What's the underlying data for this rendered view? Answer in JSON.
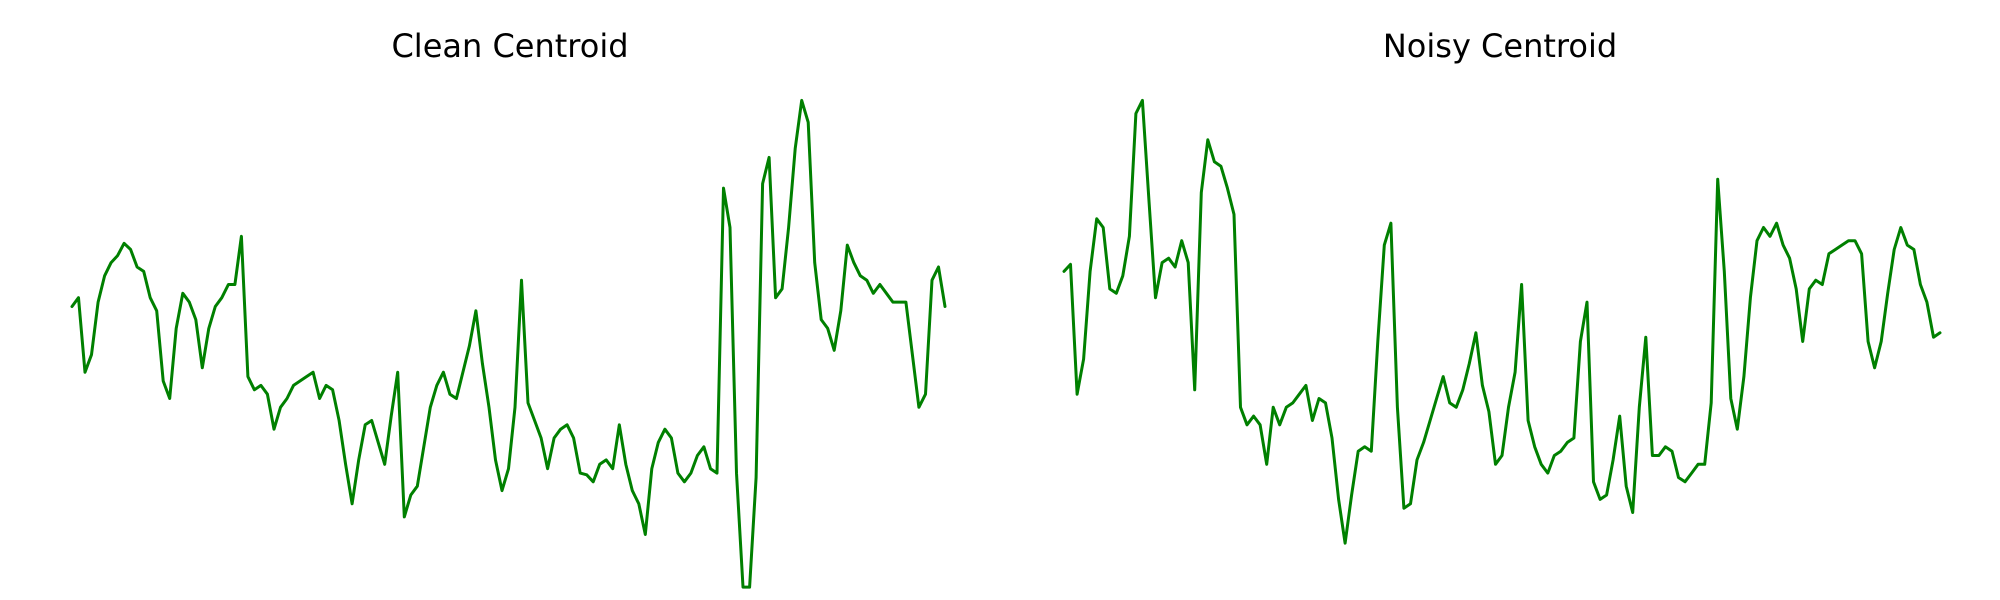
{
  "chart_data": [
    {
      "type": "line",
      "title": "Clean Centroid",
      "axis_visible": false,
      "grid": false,
      "color": "#008000",
      "x_range": [
        0,
        127
      ],
      "y_range": [
        -2.6,
        2.6
      ],
      "y": [
        0.2,
        0.3,
        -0.55,
        -0.35,
        0.25,
        0.55,
        0.7,
        0.78,
        0.92,
        0.85,
        0.65,
        0.6,
        0.3,
        0.15,
        -0.65,
        -0.85,
        -0.05,
        0.35,
        0.25,
        0.05,
        -0.5,
        -0.05,
        0.2,
        0.3,
        0.45,
        0.45,
        1.0,
        -0.6,
        -0.75,
        -0.7,
        -0.8,
        -1.2,
        -0.95,
        -0.85,
        -0.7,
        -0.65,
        -0.6,
        -0.55,
        -0.85,
        -0.7,
        -0.75,
        -1.1,
        -1.6,
        -2.05,
        -1.55,
        -1.15,
        -1.1,
        -1.35,
        -1.6,
        -1.05,
        -0.55,
        -2.2,
        -1.95,
        -1.85,
        -1.4,
        -0.95,
        -0.7,
        -0.55,
        -0.8,
        -0.85,
        -0.55,
        -0.25,
        0.15,
        -0.45,
        -0.95,
        -1.55,
        -1.9,
        -1.65,
        -0.95,
        0.5,
        -0.9,
        -1.1,
        -1.3,
        -1.65,
        -1.3,
        -1.2,
        -1.15,
        -1.3,
        -1.7,
        -1.72,
        -1.8,
        -1.6,
        -1.55,
        -1.65,
        -1.15,
        -1.6,
        -1.9,
        -2.05,
        -2.4,
        -1.65,
        -1.35,
        -1.2,
        -1.3,
        -1.7,
        -1.8,
        -1.7,
        -1.5,
        -1.4,
        -1.65,
        -1.7,
        1.55,
        1.1,
        -1.7,
        -3.0,
        -3.0,
        -1.75,
        1.6,
        1.9,
        0.3,
        0.4,
        1.1,
        2.0,
        2.55,
        2.3,
        0.7,
        0.05,
        -0.05,
        -0.3,
        0.15,
        0.9,
        0.7,
        0.55,
        0.5,
        0.35,
        0.45,
        0.35,
        0.25,
        0.25,
        0.25,
        -0.35,
        -0.95,
        -0.8,
        0.5,
        0.65,
        0.2
      ]
    },
    {
      "type": "line",
      "title": "Noisy Centroid",
      "axis_visible": false,
      "grid": false,
      "color": "#008000",
      "x_range": [
        0,
        127
      ],
      "y_range": [
        -2.6,
        2.6
      ],
      "y": [
        0.6,
        0.68,
        -0.8,
        -0.4,
        0.6,
        1.2,
        1.1,
        0.4,
        0.35,
        0.55,
        1.0,
        2.4,
        2.55,
        1.4,
        0.3,
        0.7,
        0.75,
        0.65,
        0.95,
        0.7,
        -0.75,
        1.5,
        2.1,
        1.85,
        1.8,
        1.55,
        1.25,
        -0.95,
        -1.15,
        -1.05,
        -1.15,
        -1.6,
        -0.95,
        -1.15,
        -0.95,
        -0.9,
        -0.8,
        -0.7,
        -1.1,
        -0.85,
        -0.9,
        -1.3,
        -2.0,
        -2.5,
        -1.95,
        -1.45,
        -1.4,
        -1.45,
        -0.2,
        0.9,
        1.15,
        -0.95,
        -2.1,
        -2.05,
        -1.55,
        -1.35,
        -1.1,
        -0.85,
        -0.6,
        -0.9,
        -0.95,
        -0.75,
        -0.45,
        -0.1,
        -0.7,
        -1.0,
        -1.6,
        -1.5,
        -0.95,
        -0.55,
        0.45,
        -1.1,
        -1.4,
        -1.6,
        -1.7,
        -1.5,
        -1.45,
        -1.35,
        -1.3,
        -0.2,
        0.25,
        -1.8,
        -2.0,
        -1.95,
        -1.55,
        -1.05,
        -1.85,
        -2.15,
        -0.95,
        -0.15,
        -1.5,
        -1.5,
        -1.4,
        -1.45,
        -1.75,
        -1.8,
        -1.7,
        -1.6,
        -1.6,
        -0.9,
        1.65,
        0.6,
        -0.85,
        -1.2,
        -0.6,
        0.3,
        0.95,
        1.1,
        1.0,
        1.15,
        0.9,
        0.75,
        0.4,
        -0.2,
        0.4,
        0.5,
        0.45,
        0.8,
        0.85,
        0.9,
        0.95,
        0.95,
        0.8,
        -0.2,
        -0.5,
        -0.2,
        0.35,
        0.85,
        1.1,
        0.9,
        0.85,
        0.45,
        0.25,
        -0.15,
        -0.1
      ]
    }
  ]
}
